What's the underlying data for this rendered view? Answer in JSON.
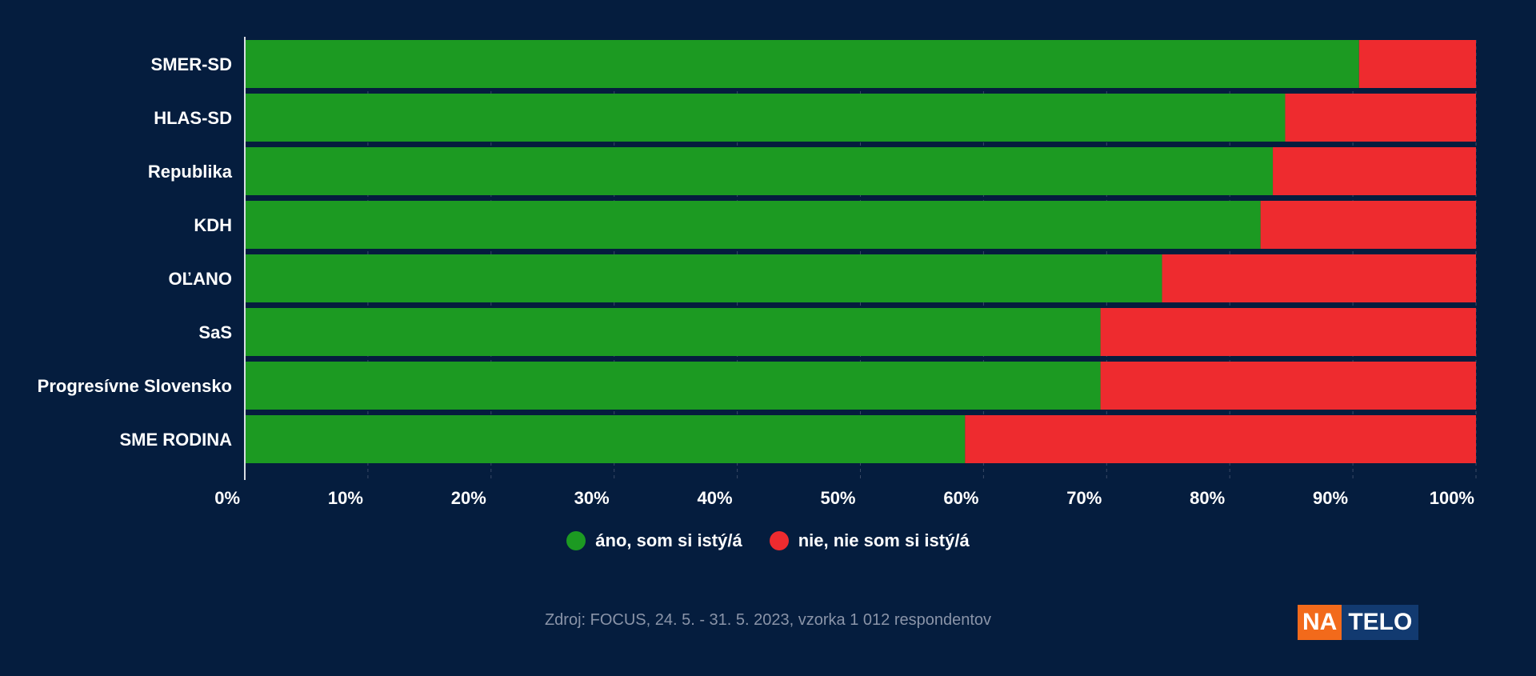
{
  "colors": {
    "background": "#051d3e",
    "yes": "#1c9a22",
    "no": "#ee2b2f",
    "text": "#ffffff",
    "source_text": "#8a94a8",
    "grid": "#3a4a66",
    "logo_na": "#f26a1b",
    "logo_telo": "#123a70"
  },
  "chart_data": {
    "type": "bar",
    "orientation": "horizontal",
    "stacked": true,
    "title": "",
    "xlabel": "",
    "ylabel": "",
    "xlim": [
      0,
      100
    ],
    "x_ticks": [
      "0%",
      "10%",
      "20%",
      "30%",
      "40%",
      "50%",
      "60%",
      "70%",
      "80%",
      "90%",
      "100%"
    ],
    "grid": true,
    "legend_position": "bottom",
    "categories": [
      "SMER-SD",
      "HLAS-SD",
      "Republika",
      "KDH",
      "OĽANO",
      "SaS",
      "Progresívne Slovensko",
      "SME RODINA"
    ],
    "series": [
      {
        "name": "áno, som si istý/á",
        "values": [
          90.5,
          84.5,
          83.5,
          82.5,
          74.5,
          69.5,
          69.5,
          58.5
        ]
      },
      {
        "name": "nie, nie som si istý/á",
        "values": [
          9.5,
          15.5,
          16.5,
          17.5,
          25.5,
          30.5,
          30.5,
          41.5
        ]
      }
    ]
  },
  "footer": {
    "source": "Zdroj: FOCUS, 24. 5. - 31. 5. 2023, vzorka 1 012 respondentov"
  },
  "logo": {
    "part1": "NA",
    "part2": "TELO"
  }
}
